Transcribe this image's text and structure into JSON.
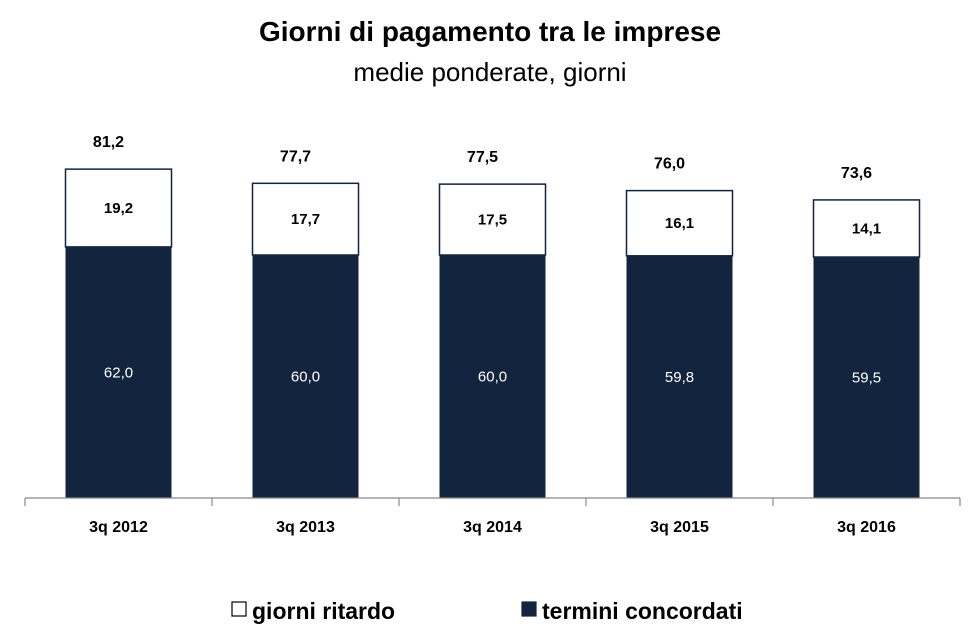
{
  "chart_data": {
    "type": "bar",
    "stacked": true,
    "title": "Giorni di pagamento tra le imprese",
    "subtitle": "medie ponderate, giorni",
    "categories": [
      "3q 2012",
      "3q 2013",
      "3q 2014",
      "3q 2015",
      "3q 2016"
    ],
    "series": [
      {
        "name": "termini concordati",
        "values": [
          62.0,
          60.0,
          60.0,
          59.8,
          59.5
        ],
        "labels": [
          "62,0",
          "60,0",
          "60,0",
          "59,8",
          "59,5"
        ],
        "color": "#13243f"
      },
      {
        "name": "giorni ritardo",
        "values": [
          19.2,
          17.7,
          17.5,
          16.1,
          14.1
        ],
        "labels": [
          "19,2",
          "17,7",
          "17,5",
          "16,1",
          "14,1"
        ],
        "color": "#ffffff"
      }
    ],
    "totals": [
      "81,2",
      "77,7",
      "77,5",
      "76,0",
      "73,6"
    ],
    "ylim": [
      0,
      85
    ],
    "grid": false,
    "legend_position": "bottom",
    "legend": [
      {
        "label": "giorni ritardo",
        "color": "#ffffff"
      },
      {
        "label": "termini concordati",
        "color": "#13243f"
      }
    ]
  }
}
